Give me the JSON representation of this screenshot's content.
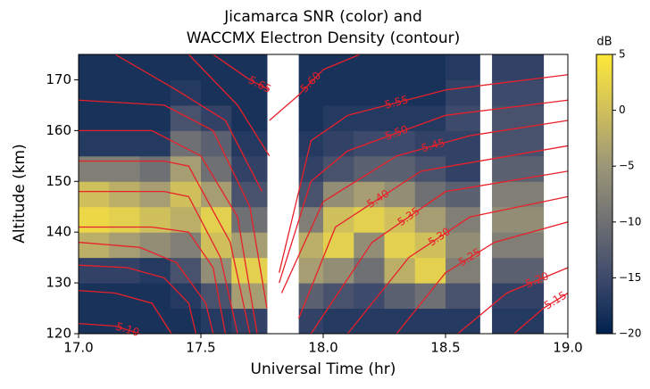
{
  "chart_data": {
    "type": "heatmap",
    "title": [
      "Jicamarca SNR (color) and",
      "WACCMX Electron Density (contour)"
    ],
    "x_label": "Universal Time (hr)",
    "y_label": "Altitude (km)",
    "xlim": [
      17,
      19
    ],
    "xticks": [
      {
        "value": 17,
        "label": "17.0"
      },
      {
        "value": 17.5,
        "label": "17.5"
      },
      {
        "value": 18,
        "label": "18.0"
      },
      {
        "value": 18.5,
        "label": "18.5"
      },
      {
        "value": 19,
        "label": "19.0"
      }
    ],
    "ylim": [
      120,
      175
    ],
    "yticks": [
      120,
      130,
      140,
      150,
      160,
      170
    ],
    "colorbar": {
      "label": "dB",
      "lim": [
        -20,
        5
      ],
      "ticks": [
        {
          "value": -20,
          "label": "−20"
        },
        {
          "value": -15,
          "label": "−15"
        },
        {
          "value": -10,
          "label": "−10"
        },
        {
          "value": -5,
          "label": "−5"
        },
        0,
        5
      ],
      "colormap": [
        "#00224e",
        "#3e4a6c",
        "#6f7073",
        "#9b9677",
        "#d0c05c",
        "#fee838"
      ]
    },
    "snr": {
      "x_edges": [
        17,
        17.125,
        17.25,
        17.375,
        17.5,
        17.625,
        17.77,
        17.9,
        18,
        18.125,
        18.25,
        18.375,
        18.5,
        18.64,
        18.69,
        18.9,
        19
      ],
      "y_edges": [
        120,
        125,
        130,
        135,
        140,
        145,
        150,
        155,
        160,
        165,
        170,
        175
      ],
      "values": [
        [
          -18,
          -18,
          -18,
          -18,
          -17,
          -16,
          null,
          -16,
          -17,
          -17,
          -17,
          -17,
          -17,
          null,
          -17,
          null
        ],
        [
          -18,
          -18,
          -18,
          -17,
          -14,
          -4,
          null,
          -12,
          -14,
          -15,
          -12,
          -10,
          -14,
          null,
          -16,
          null
        ],
        [
          -16,
          -16,
          -17,
          -14,
          -6,
          2,
          null,
          -4,
          -6,
          -10,
          -2,
          2,
          -8,
          null,
          -12,
          null
        ],
        [
          -2,
          -4,
          -6,
          -8,
          0,
          -4,
          null,
          -2,
          2,
          -6,
          2,
          0,
          -6,
          null,
          -8,
          null
        ],
        [
          3,
          2,
          0,
          -2,
          2,
          -10,
          null,
          -8,
          0,
          2,
          0,
          -4,
          -8,
          null,
          -6,
          null
        ],
        [
          0,
          -2,
          -4,
          0,
          -4,
          -14,
          null,
          -14,
          -6,
          -4,
          -6,
          -10,
          -12,
          null,
          -8,
          null
        ],
        [
          -8,
          -8,
          -10,
          -4,
          -10,
          -16,
          null,
          -16,
          -14,
          -12,
          -12,
          -14,
          -16,
          null,
          -12,
          null
        ],
        [
          -17,
          -17,
          -17,
          -10,
          -12,
          -17,
          null,
          -17,
          -16,
          -15,
          -15,
          -16,
          -16,
          null,
          -14,
          null
        ],
        [
          -18,
          -18,
          -18,
          -14,
          -16,
          -18,
          null,
          -18,
          -17,
          -17,
          -17,
          -17,
          -15,
          null,
          -14,
          null
        ],
        [
          -18,
          -18,
          -18,
          -17,
          -18,
          -18,
          null,
          -18,
          -18,
          -18,
          -18,
          -18,
          -16,
          null,
          -15,
          null
        ],
        [
          -18,
          -18,
          -18,
          -18,
          -18,
          -18,
          null,
          -18,
          -18,
          -18,
          -18,
          -18,
          -17,
          null,
          -16,
          null
        ]
      ]
    },
    "contour_color": "#e8202a",
    "contours": [
      {
        "level": {
          "value": 5.1,
          "label": "5.10"
        },
        "pieces": [
          {
            "x": [
              17.0,
              17.15,
              17.25
            ],
            "y": [
              122,
              121.5,
              120
            ]
          }
        ]
      },
      {
        "level": {
          "value": 5.15,
          "label": "5.15"
        },
        "pieces": [
          {
            "x": [
              17.0,
              17.15,
              17.3,
              17.38
            ],
            "y": [
              128.5,
              128,
              126,
              120
            ]
          },
          {
            "x": [
              18.78,
              18.9,
              19.0
            ],
            "y": [
              120,
              125,
              128
            ]
          }
        ]
      },
      {
        "level": {
          "value": 5.2,
          "label": "5.20"
        },
        "pieces": [
          {
            "x": [
              17.0,
              17.2,
              17.35,
              17.45,
              17.48
            ],
            "y": [
              133.5,
              133,
              131,
              126,
              120
            ]
          },
          {
            "x": [
              18.55,
              18.75,
              19.0
            ],
            "y": [
              120,
              128,
              133
            ]
          }
        ]
      },
      {
        "level": {
          "value": 5.25,
          "label": "5.25"
        },
        "pieces": [
          {
            "x": [
              17.0,
              17.25,
              17.4,
              17.52,
              17.55
            ],
            "y": [
              138,
              137,
              134,
              126,
              120
            ]
          },
          {
            "x": [
              18.3,
              18.5,
              18.7,
              19.0
            ],
            "y": [
              120,
              132,
              138,
              142
            ]
          }
        ]
      },
      {
        "level": {
          "value": 5.3,
          "label": "5.30"
        },
        "pieces": [
          {
            "x": [
              17.0,
              17.3,
              17.45,
              17.55,
              17.6
            ],
            "y": [
              141,
              141,
              140,
              133,
              120
            ]
          },
          {
            "x": [
              18.1,
              18.35,
              18.6,
              19.0
            ],
            "y": [
              120,
              135,
              143,
              147
            ]
          }
        ]
      },
      {
        "level": {
          "value": 5.35,
          "label": "5.35"
        },
        "pieces": [
          {
            "x": [
              17.0,
              17.35,
              17.45,
              17.58,
              17.65
            ],
            "y": [
              148,
              148,
              147,
              135,
              120
            ]
          },
          {
            "x": [
              17.95,
              18.2,
              18.5,
              19.0
            ],
            "y": [
              120,
              138,
              148,
              152
            ]
          }
        ]
      },
      {
        "level": {
          "value": 5.4,
          "label": "5.40"
        },
        "pieces": [
          {
            "x": [
              17.0,
              17.35,
              17.45,
              17.62,
              17.7
            ],
            "y": [
              154,
              154,
              153,
              138,
              120
            ]
          },
          {
            "x": [
              17.9,
              18.05,
              18.4,
              19.0
            ],
            "y": [
              123,
              141,
              152,
              157
            ]
          }
        ]
      },
      {
        "level": {
          "value": 5.45,
          "label": "5.45"
        },
        "pieces": [
          {
            "x": [
              17.0,
              17.3,
              17.5,
              17.65,
              17.73
            ],
            "y": [
              160,
              160,
              155,
              143,
              120
            ]
          },
          {
            "x": [
              17.83,
              18.0,
              18.3,
              18.6,
              19.0
            ],
            "y": [
              128,
              146,
              155,
              159,
              162
            ]
          }
        ]
      },
      {
        "level": {
          "value": 5.5,
          "label": "5.50"
        },
        "pieces": [
          {
            "x": [
              17.0,
              17.35,
              17.55,
              17.7,
              17.77
            ],
            "y": [
              166,
              165,
              160,
              145,
              125
            ]
          },
          {
            "x": [
              17.82,
              17.95,
              18.1,
              18.5,
              19.0
            ],
            "y": [
              130,
              150,
              156,
              163,
              166
            ]
          }
        ]
      },
      {
        "level": {
          "value": 5.55,
          "label": "5.55"
        },
        "pieces": [
          {
            "x": [
              17.15,
              17.4,
              17.6,
              17.75
            ],
            "y": [
              175,
              168,
              162,
              148
            ]
          },
          {
            "x": [
              17.82,
              17.95,
              18.1,
              18.5,
              19.0
            ],
            "y": [
              132,
              158,
              163,
              168,
              171
            ]
          }
        ]
      },
      {
        "level": {
          "value": 5.6,
          "label": "5.60"
        },
        "pieces": [
          {
            "x": [
              17.45,
              17.65,
              17.78
            ],
            "y": [
              175,
              165,
              155
            ]
          },
          {
            "x": [
              17.78,
              17.9,
              18.0,
              18.15
            ],
            "y": [
              162,
              167,
              172,
              175
            ]
          }
        ]
      },
      {
        "level": {
          "value": 5.65,
          "label": "5.65"
        },
        "pieces": [
          {
            "x": [
              17.55,
              17.7,
              17.78
            ],
            "y": [
              175,
              170,
              168
            ]
          }
        ]
      }
    ]
  }
}
